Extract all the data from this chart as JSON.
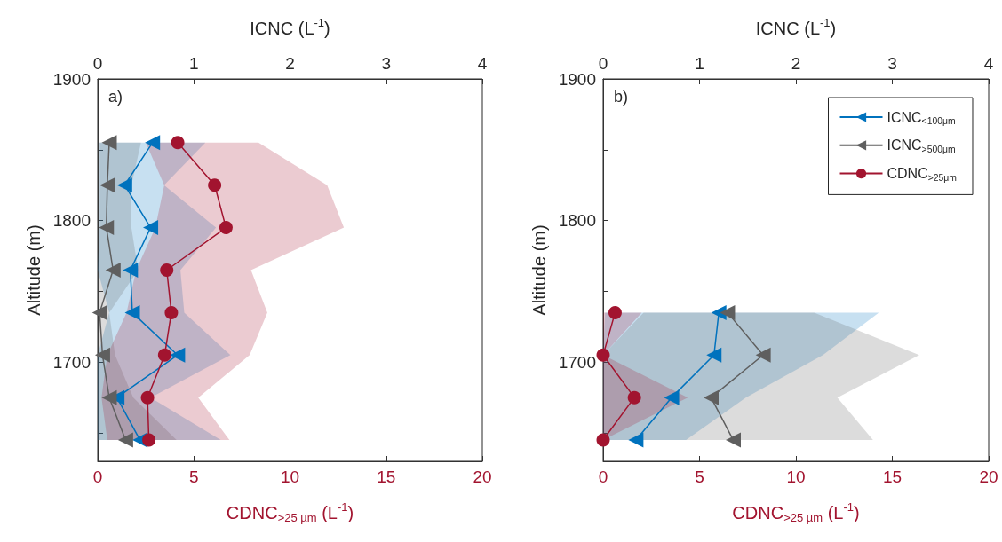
{
  "chart_data": [
    {
      "type": "line",
      "orientation": "horizontal",
      "ylabel": "Altitude (m)",
      "xlabel": "CDNC$_{>25 µm}$ (L$^{-1}$)",
      "x2label": "ICNC (L$^{-1}$)",
      "annotations": [
        "a)"
      ],
      "xlim": [
        0,
        20
      ],
      "xticks": [
        0,
        5,
        10,
        15,
        20
      ],
      "x2lim": [
        0,
        4
      ],
      "x2ticks": [
        0,
        1,
        2,
        3,
        4
      ],
      "ylim": [
        1630,
        1900
      ],
      "yticks": [
        {
          "value": 1650,
          "label": null
        },
        1700,
        {
          "value": 1750,
          "label": null
        },
        1800,
        {
          "value": 1850,
          "label": null
        },
        1900
      ],
      "legend": false,
      "grid": false,
      "line_style": "solid",
      "series": [
        {
          "color": "#0072bd",
          "axis": "x2",
          "marker": "triangle",
          "x": [
            1855,
            1825,
            1795,
            1765,
            1735,
            1705,
            1675,
            1645
          ],
          "values": [
            0.57,
            0.28,
            0.55,
            0.34,
            0.36,
            0.83,
            0.2,
            0.44
          ],
          "lower": [
            0.02,
            0.02,
            0.02,
            0,
            0.12,
            0,
            0,
            0
          ],
          "upper": [
            1.12,
            0.69,
            1.23,
            0.86,
            0.9,
            1.38,
            0.55,
            1.28
          ]
        },
        {
          "color": "#5f5f5f",
          "axis": "x2",
          "marker": "triangle",
          "x": [
            1855,
            1825,
            1795,
            1765,
            1735,
            1705,
            1675,
            1645
          ],
          "values": [
            0.12,
            0.1,
            0.09,
            0.16,
            0.02,
            0.05,
            0.12,
            0.29
          ],
          "lower": [
            0.02,
            0.02,
            0.02,
            0,
            0,
            0,
            0,
            0
          ],
          "upper": [
            0.45,
            0.35,
            0.35,
            0.42,
            0.12,
            0.18,
            0.37,
            0.82
          ]
        },
        {
          "color": "#a2142f",
          "marker": "circle",
          "x": [
            1855,
            1825,
            1795,
            1765,
            1735,
            1705,
            1675,
            1645
          ],
          "values": [
            4.16,
            6.08,
            6.67,
            3.59,
            3.83,
            3.48,
            2.59,
            2.66
          ],
          "lower": [
            2.5,
            3.46,
            3,
            2,
            1.5,
            0.5,
            0.2,
            0.5
          ],
          "upper": [
            8.36,
            11.93,
            12.8,
            7.97,
            8.82,
            7.9,
            5.23,
            6.85
          ]
        }
      ]
    },
    {
      "type": "line",
      "orientation": "horizontal",
      "ylabel": "Altitude (m)",
      "xlabel": "CDNC$_{>25 µm}$ (L$^{-1}$)",
      "x2label": "ICNC (L$^{-1}$)",
      "annotations": [
        "b)"
      ],
      "xlim": [
        0,
        20
      ],
      "xticks": [
        0,
        5,
        10,
        15,
        20
      ],
      "x2lim": [
        0,
        4
      ],
      "x2ticks": [
        0,
        1,
        2,
        3,
        4
      ],
      "ylim": [
        1630,
        1900
      ],
      "yticks": [
        {
          "value": 1650,
          "label": null
        },
        1700,
        {
          "value": 1750,
          "label": null
        },
        1800,
        {
          "value": 1850,
          "label": null
        },
        1900
      ],
      "legend": "top right",
      "grid": false,
      "line_style": "solid",
      "series": [
        {
          "name": "ICNC$_{<100μm}$",
          "color": "#0072bd",
          "axis": "x2",
          "marker": "triangle",
          "x": [
            1735,
            1705,
            1675,
            1645
          ],
          "values": [
            1.2,
            1.15,
            0.71,
            0.34
          ],
          "lower": [
            0.02,
            0,
            0,
            0
          ],
          "upper": [
            2.86,
            2.28,
            1.48,
            0.86
          ]
        },
        {
          "name": "ICNC$_{>500μm}$",
          "color": "#5f5f5f",
          "axis": "x2",
          "marker": "triangle",
          "x": [
            1735,
            1705,
            1675,
            1645
          ],
          "values": [
            1.29,
            1.66,
            1.12,
            1.35
          ],
          "lower": [
            0.42,
            0,
            0,
            0
          ],
          "upper": [
            2.19,
            3.28,
            2.43,
            2.8
          ]
        },
        {
          "name": "CDNC$_{>25μm}$",
          "color": "#a2142f",
          "marker": "circle",
          "x": [
            1735,
            1705,
            1675,
            1645
          ],
          "values": [
            0.62,
            0,
            1.62,
            0
          ],
          "lower": [
            0,
            0,
            0,
            0
          ],
          "upper": [
            2,
            0,
            4.39,
            0
          ]
        }
      ]
    }
  ]
}
